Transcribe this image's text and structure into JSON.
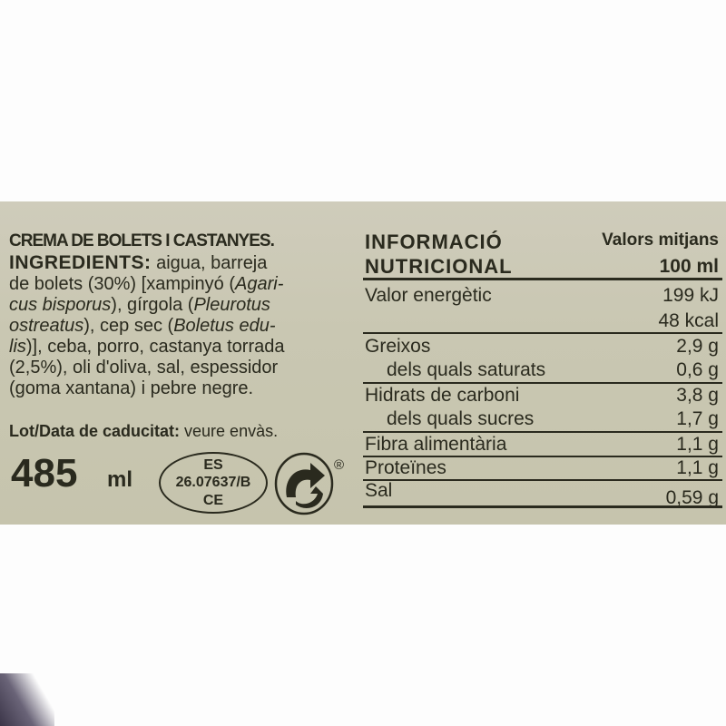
{
  "product": {
    "title": "CREMA DE BOLETS I CASTANYES.",
    "ingredients_label": "INGREDIENTS:",
    "ingredient_lines": [
      " aigua, barreja",
      "de bolets (30%) [xampinyó (Agari-",
      "cus bisporus), gírgola (Pleurotus",
      "ostreatus), cep sec (Boletus edu-",
      "lis)], ceba, porro, castanya torrada",
      "(2,5%), oli d'oliva, sal, espessidor",
      "(goma xantana) i pebre negre."
    ],
    "lot_label": "Lot/Data de caducitat:",
    "lot_value": " veure envàs.",
    "volume_number": "485",
    "volume_unit": "ml",
    "health_mark": [
      "ES",
      "26.07637/B",
      "CE"
    ],
    "registered_mark": "®",
    "green_dot_icon": "recycling-green-dot-icon"
  },
  "nutrition": {
    "title_line1": "INFORMACIÓ",
    "title_line2": "NUTRICIONAL",
    "header_line1": "Valors mitjans",
    "header_line2": "100 ml",
    "rows": [
      {
        "label": "Valor energètic",
        "value": "199 kJ"
      },
      {
        "label": "",
        "value": "48 kcal"
      },
      {
        "label": "Greixos",
        "value": "2,9 g"
      },
      {
        "label": "dels quals saturats",
        "value": "0,6 g"
      },
      {
        "label": "Hidrats de carboni",
        "value": "3,8 g"
      },
      {
        "label": "dels quals sucres",
        "value": "1,7 g"
      },
      {
        "label": "Fibra alimentària",
        "value": "1,1 g"
      },
      {
        "label": "Proteïnes",
        "value": "1,1 g"
      },
      {
        "label": "Sal",
        "value": "0,59 g"
      }
    ]
  },
  "colors": {
    "label_background": "#c9c7b2",
    "ink": "#2a2a1e"
  }
}
